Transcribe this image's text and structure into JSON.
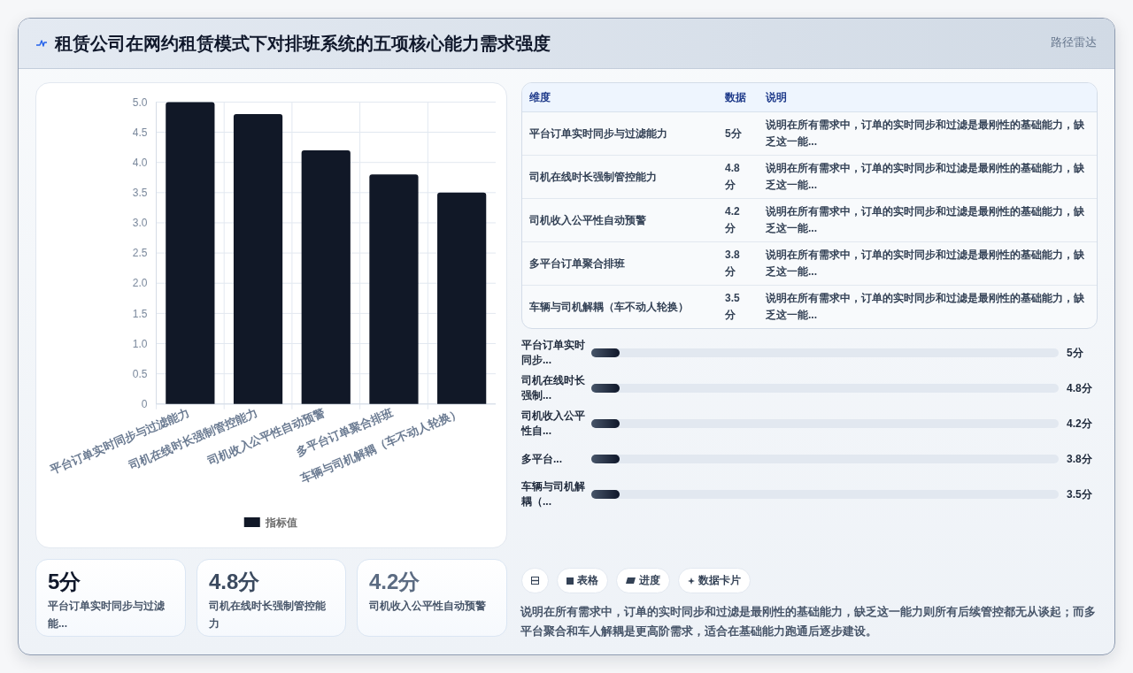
{
  "chart_data": [
    {
      "type": "other",
      "title": "租赁公司在网约租赁模式下对排班系统的五项核心能力需求强度",
      "subtitle": "路径雷达"
    },
    {
      "type": "bar",
      "categories": [
        "平台订单实时同步与过滤能力",
        "司机在线时长强制管控能力",
        "司机收入公平性自动预警",
        "多平台订单聚合排班",
        "车辆与司机解耦（车不动人轮换）"
      ],
      "series": [
        {
          "name": "指标值",
          "color": "#111827",
          "values": [
            5,
            4.8,
            4.2,
            3.8,
            3.5
          ]
        }
      ],
      "ylim": [
        0,
        5
      ],
      "yticks": [
        0,
        0.5,
        {
          "value": 1,
          "label": "1.0"
        },
        1.5,
        {
          "value": 2,
          "label": "2.0"
        },
        2.5,
        {
          "value": 3,
          "label": "3.0"
        },
        3.5,
        {
          "value": 4,
          "label": "4.0"
        },
        4.5,
        {
          "value": 5,
          "label": "5.0"
        }
      ],
      "grid": true,
      "legend": "bottom"
    },
    {
      "type": "other",
      "categories": [
        "平台订单实时同步与过滤能力",
        "司机在线时长强制管控能力",
        "司机收入公平性自动预警",
        "多平台订单聚合排班",
        "车辆与司机解耦（车不动人轮换）"
      ],
      "value_labels": [
        "5分",
        "4.8分",
        "4.2分",
        "3.8分",
        "3.5分"
      ],
      "annotations": [
        "维度",
        "数据",
        "说明",
        "说明在所有需求中，订单的实时同步和过滤是最刚性的基础能力，缺乏这一能...",
        "说明在所有需求中，订单的实时同步和过滤是最刚性的基础能力，缺乏这一能...",
        "说明在所有需求中，订单的实时同步和过滤是最刚性的基础能力，缺乏这一能...",
        "说明在所有需求中，订单的实时同步和过滤是最刚性的基础能力，缺乏这一能...",
        "说明在所有需求中，订单的实时同步和过滤是最刚性的基础能力，缺乏这一能..."
      ]
    },
    {
      "type": "other",
      "categories": [
        "平台订单实时同步...",
        "司机在线时长强制...",
        "司机收入公平性自...",
        "多平台...",
        "车辆与司机解耦（..."
      ],
      "value_labels": [
        "5分",
        "4.8分",
        "4.2分",
        "3.8分",
        "3.5分"
      ]
    },
    {
      "type": "other",
      "categories": [
        "平台订单实时同步与过滤能...",
        "司机在线时长强制管控能力",
        "司机收入公平性自动预警"
      ],
      "value_labels": [
        "5分",
        "4.8分",
        "4.2分"
      ]
    },
    {
      "type": "other",
      "annotations": [
        "表格",
        "进度",
        "数据卡片",
        "说明在所有需求中，订单的实时同步和过滤是最刚性的基础能力，缺乏这一能力则所有后续管控都无从谈起；而多平台聚合和车人解耦是更高阶需求，适合在基础能力跑通后逐步建设。"
      ]
    }
  ]
}
